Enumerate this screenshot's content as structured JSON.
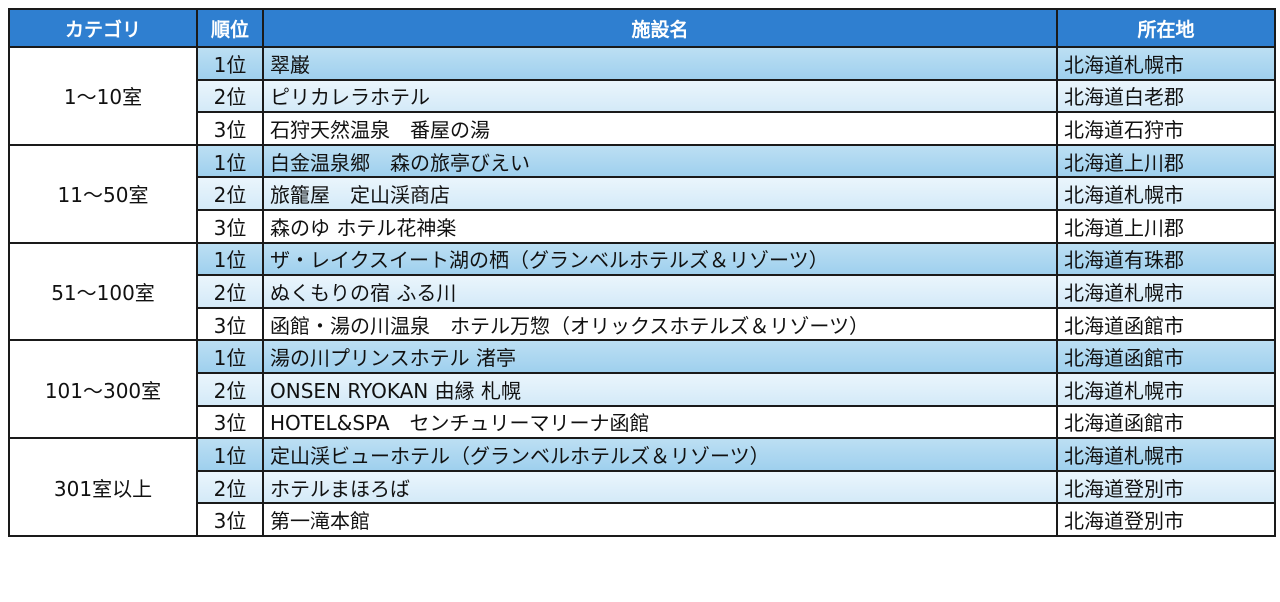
{
  "headers": {
    "category": "カテゴリ",
    "rank": "順位",
    "facility": "施設名",
    "location": "所在地"
  },
  "groups": [
    {
      "category": "1～10室",
      "rows": [
        {
          "rank": "1位",
          "name": "翠巌",
          "location": "北海道札幌市"
        },
        {
          "rank": "2位",
          "name": "ピリカレラホテル",
          "location": "北海道白老郡"
        },
        {
          "rank": "3位",
          "name": "石狩天然温泉　番屋の湯",
          "location": "北海道石狩市"
        }
      ]
    },
    {
      "category": "11～50室",
      "rows": [
        {
          "rank": "1位",
          "name": "白金温泉郷　森の旅亭びえい",
          "location": "北海道上川郡"
        },
        {
          "rank": "2位",
          "name": "旅籠屋　定山渓商店",
          "location": "北海道札幌市"
        },
        {
          "rank": "3位",
          "name": "森のゆ ホテル花神楽",
          "location": "北海道上川郡"
        }
      ]
    },
    {
      "category": "51～100室",
      "rows": [
        {
          "rank": "1位",
          "name": "ザ・レイクスイート湖の栖（グランベルホテルズ＆リゾーツ）",
          "location": "北海道有珠郡"
        },
        {
          "rank": "2位",
          "name": "ぬくもりの宿 ふる川",
          "location": "北海道札幌市"
        },
        {
          "rank": "3位",
          "name": "函館・湯の川温泉　ホテル万惣（オリックスホテルズ＆リゾーツ）",
          "location": "北海道函館市"
        }
      ]
    },
    {
      "category": "101～300室",
      "rows": [
        {
          "rank": "1位",
          "name": "湯の川プリンスホテル 渚亭",
          "location": "北海道函館市"
        },
        {
          "rank": "2位",
          "name": "ONSEN RYOKAN 由縁 札幌",
          "location": "北海道札幌市"
        },
        {
          "rank": "3位",
          "name": "HOTEL&SPA　センチュリーマリーナ函館",
          "location": "北海道函館市"
        }
      ]
    },
    {
      "category": "301室以上",
      "rows": [
        {
          "rank": "1位",
          "name": "定山渓ビューホテル（グランベルホテルズ＆リゾーツ）",
          "location": "北海道札幌市"
        },
        {
          "rank": "2位",
          "name": "ホテルまほろば",
          "location": "北海道登別市"
        },
        {
          "rank": "3位",
          "name": "第一滝本館",
          "location": "北海道登別市"
        }
      ]
    }
  ]
}
